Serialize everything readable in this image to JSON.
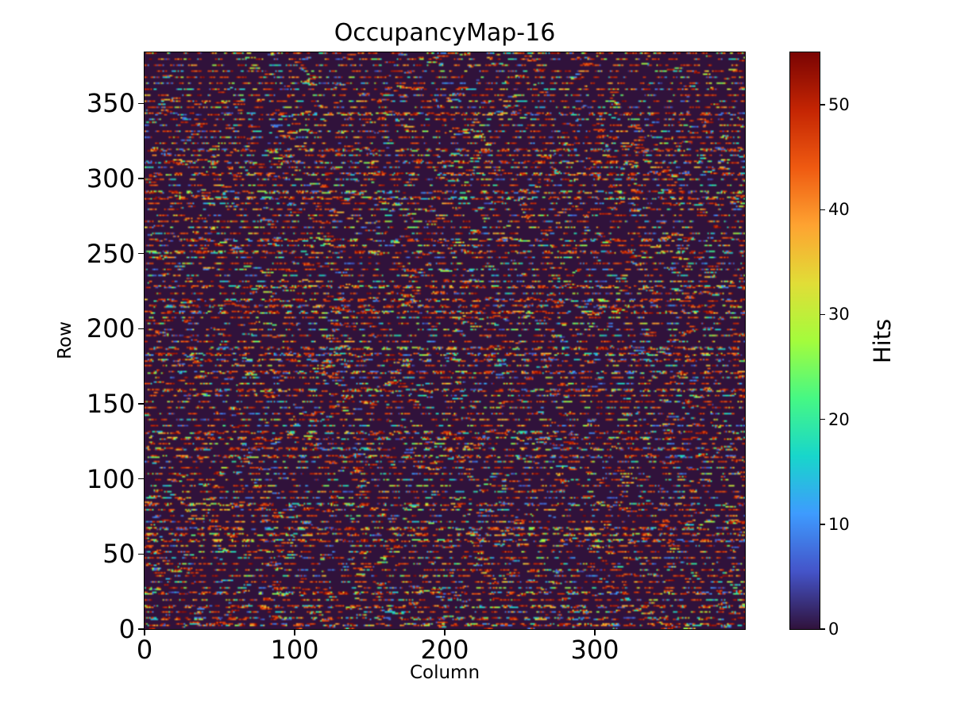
{
  "figure": {
    "background": "#ffffff",
    "text_color": "#000000"
  },
  "chart_data": {
    "type": "heatmap",
    "title": "OccupancyMap-16",
    "xlabel": "Column",
    "ylabel": "Row",
    "colorbar_label": "Hits",
    "x_range": [
      0,
      400
    ],
    "y_range": [
      0,
      384
    ],
    "value_range": [
      0,
      55
    ],
    "x_ticks": [
      0,
      100,
      200,
      300
    ],
    "y_ticks": [
      0,
      50,
      100,
      150,
      200,
      250,
      300,
      350
    ],
    "colorbar_ticks": [
      0,
      10,
      20,
      30,
      40,
      50
    ],
    "grid": false,
    "legend": false,
    "colormap": {
      "name": "turbo",
      "stops": [
        "#30123b",
        "#4454c9",
        "#3e9bfe",
        "#18d6cb",
        "#46f884",
        "#a4fc3c",
        "#e1dd37",
        "#fea331",
        "#ef5a11",
        "#c42503",
        "#7a0403"
      ]
    },
    "pattern": {
      "description": "sparse random occupancy: horizontal dash segments on roughly every 4th pixel row, red-dominant value mixture over dark-purple zero background",
      "seed": 16,
      "rows": 384,
      "cols": 400,
      "active_row_period": 4,
      "dash_start_prob_active": 0.28,
      "dash_start_prob_inactive": 0.012,
      "dash_min_len": 2,
      "dash_max_len": 8,
      "value_mixture": [
        [
          42,
          55,
          0.55
        ],
        [
          3,
          12,
          0.15
        ],
        [
          12,
          22,
          0.12
        ],
        [
          22,
          32,
          0.1
        ],
        [
          32,
          42,
          0.08
        ]
      ]
    }
  }
}
